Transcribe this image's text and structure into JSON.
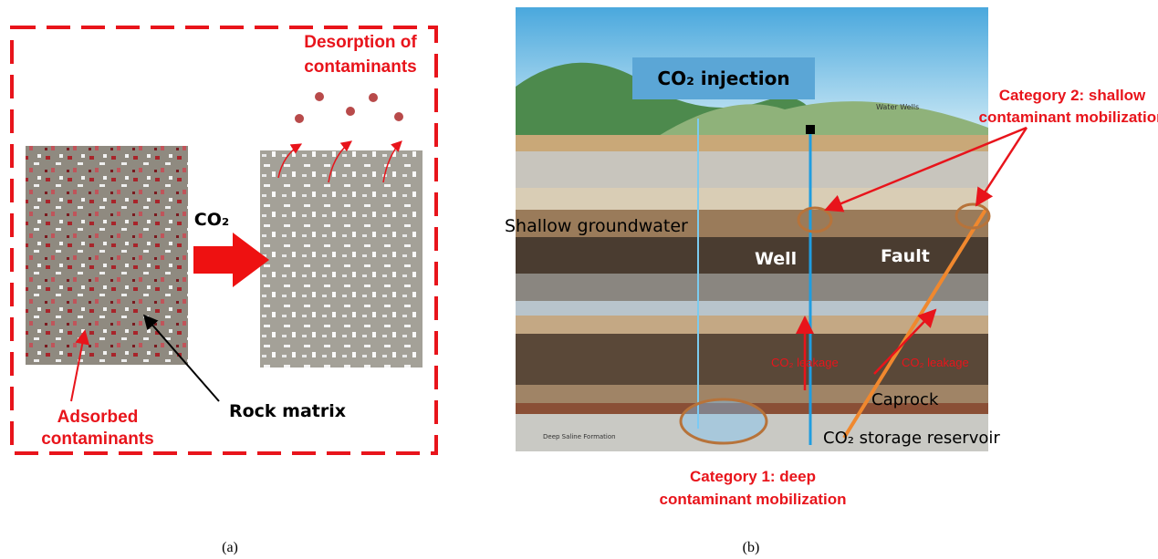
{
  "panel_a": {
    "desorption_label": [
      "Desorption of",
      "contaminants"
    ],
    "co2_label": "CO₂",
    "adsorbed_label": [
      "Adsorbed",
      "contaminants"
    ],
    "rock_matrix_label": "Rock matrix",
    "caption": "(a)"
  },
  "panel_b": {
    "injection_label": "CO₂ injection",
    "water_wells_label": "Water Wells",
    "category2_label": [
      "Category 2: shallow",
      "contaminant mobilization"
    ],
    "shallow_groundwater_label": "Shallow groundwater",
    "well_label": "Well",
    "fault_label": "Fault",
    "leakage_labels": [
      "CO₂ leakage",
      "CO₂ leakage"
    ],
    "caprock_label": "Caprock",
    "reservoir_label": "CO₂ storage reservoir",
    "formation_label": "Deep Saline Formation",
    "category1_label": [
      "Category 1: deep",
      "contaminant mobilization"
    ],
    "caption": "(b)"
  }
}
